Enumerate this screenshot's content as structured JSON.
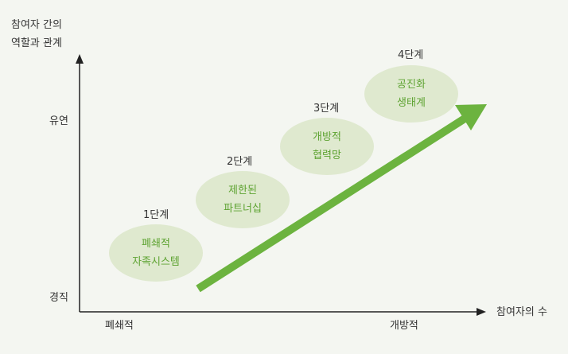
{
  "y_axis": {
    "title_line1": "참여자 간의",
    "title_line2": "역할과 관계",
    "high_label": "유연",
    "low_label": "경직"
  },
  "x_axis": {
    "title": "참여자의 수",
    "low_label": "폐쇄적",
    "high_label": "개방적"
  },
  "stages": [
    {
      "stage": "1단계",
      "line1": "폐쇄적",
      "line2": "자족시스템"
    },
    {
      "stage": "2단계",
      "line1": "제한된",
      "line2": "파트너십"
    },
    {
      "stage": "3단계",
      "line1": "개방적",
      "line2": "협력망"
    },
    {
      "stage": "4단계",
      "line1": "공진화",
      "line2": "생태계"
    }
  ],
  "colors": {
    "ellipse": "#dfe9cf",
    "ellipse_text": "#5ea332",
    "arrow": "#6cb33f",
    "axis": "#222222",
    "background": "#f4f6f1"
  }
}
